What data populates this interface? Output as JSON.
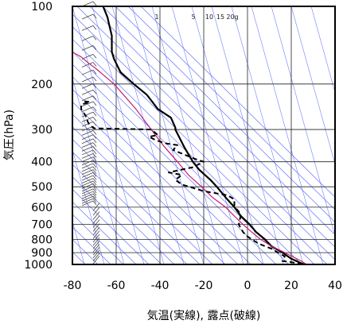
{
  "chart_data": {
    "type": "line",
    "title": "",
    "xlabel": "気温(実線), 露点(破線)",
    "ylabel": "気圧(hPa)",
    "xlim": [
      -80,
      40
    ],
    "ylim": [
      1000,
      100
    ],
    "y_scale": "log",
    "xticks": [
      "-80",
      "-60",
      "-40",
      "-20",
      "0",
      "20",
      "40"
    ],
    "xtick_values": [
      -80,
      -60,
      -40,
      -20,
      0,
      20,
      40
    ],
    "yticks": [
      "100",
      "200",
      "300",
      "400",
      "500",
      "600",
      "700",
      "800",
      "900",
      "1000"
    ],
    "ytick_values": [
      100,
      200,
      300,
      400,
      500,
      600,
      700,
      800,
      900,
      1000
    ],
    "mixing_ratio_labels": [
      "1",
      "5",
      "10",
      "15",
      "20g"
    ],
    "mixing_ratio_values": [
      1,
      5,
      10,
      15,
      20
    ],
    "grid": true,
    "background_lines": {
      "dry_adiabat_color": "#5060ff",
      "mixing_ratio_color": "#5060ff"
    },
    "series": [
      {
        "style": "solid",
        "color": "#000000",
        "points": [
          [
            26,
            1000
          ],
          [
            24,
            985
          ],
          [
            20,
            950
          ],
          [
            16,
            900
          ],
          [
            11,
            850
          ],
          [
            8,
            800
          ],
          [
            4,
            750
          ],
          [
            1,
            700
          ],
          [
            -3,
            650
          ],
          [
            -6,
            600
          ],
          [
            -10,
            550
          ],
          [
            -14,
            500
          ],
          [
            -17,
            470
          ],
          [
            -22,
            430
          ],
          [
            -25,
            400
          ],
          [
            -29,
            350
          ],
          [
            -33,
            300
          ],
          [
            -33,
            295
          ],
          [
            -35,
            270
          ],
          [
            -41,
            250
          ],
          [
            -46,
            220
          ],
          [
            -52,
            200
          ],
          [
            -58,
            180
          ],
          [
            -61,
            160
          ],
          [
            -62,
            150
          ],
          [
            -62,
            130
          ],
          [
            -63,
            120
          ],
          [
            -64,
            110
          ],
          [
            -66,
            100
          ]
        ]
      },
      {
        "style": "solid",
        "color": "#c02070",
        "points": [
          [
            27,
            1000
          ],
          [
            25,
            975
          ],
          [
            17,
            900
          ],
          [
            11,
            850
          ],
          [
            6,
            800
          ],
          [
            2,
            750
          ],
          [
            -2,
            700
          ],
          [
            -6,
            650
          ],
          [
            -10,
            600
          ],
          [
            -16,
            550
          ],
          [
            -21,
            500
          ],
          [
            -27,
            450
          ],
          [
            -32,
            400
          ],
          [
            -38,
            350
          ],
          [
            -44,
            300
          ],
          [
            -51,
            250
          ],
          [
            -61,
            200
          ],
          [
            -69,
            175
          ],
          [
            -73,
            165
          ],
          [
            -76,
            157
          ],
          [
            -79,
            152
          ],
          [
            -80,
            150
          ]
        ]
      },
      {
        "style": "dashed",
        "color": "#000000",
        "points": [
          [
            25,
            1000
          ],
          [
            20,
            980
          ],
          [
            16,
            970
          ],
          [
            17,
            930
          ],
          [
            14,
            900
          ],
          [
            11,
            870
          ],
          [
            5,
            830
          ],
          [
            0,
            780
          ],
          [
            -2,
            750
          ],
          [
            -4,
            700
          ],
          [
            -3,
            640
          ],
          [
            -5,
            610
          ],
          [
            -6,
            590
          ],
          [
            -6,
            560
          ],
          [
            -9,
            540
          ],
          [
            -20,
            520
          ],
          [
            -25,
            505
          ],
          [
            -30,
            490
          ],
          [
            -33,
            470
          ],
          [
            -30,
            450
          ],
          [
            -36,
            440
          ],
          [
            -25,
            420
          ],
          [
            -20,
            400
          ],
          [
            -24,
            390
          ],
          [
            -29,
            375
          ],
          [
            -34,
            360
          ],
          [
            -32,
            345
          ],
          [
            -37,
            340
          ],
          [
            -42,
            330
          ],
          [
            -45,
            320
          ],
          [
            -41,
            315
          ],
          [
            -44,
            300
          ],
          [
            -70,
            297
          ],
          [
            -72,
            290
          ],
          [
            -73,
            280
          ],
          [
            -74,
            265
          ],
          [
            -76,
            250
          ],
          [
            -76,
            240
          ],
          [
            -72,
            235
          ],
          [
            -76,
            232
          ]
        ]
      }
    ]
  }
}
